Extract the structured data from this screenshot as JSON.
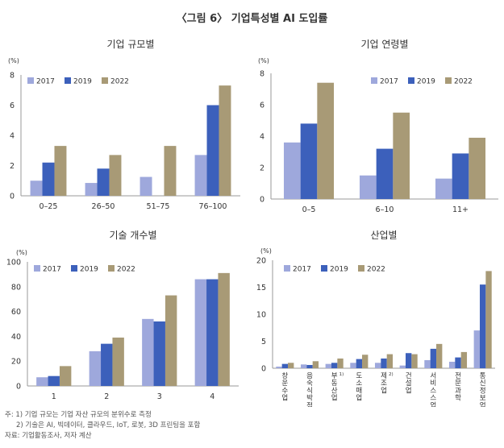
{
  "page_title": "〈그림 6〉 기업특성별 AI 도입률",
  "legend_labels": [
    "2017",
    "2019",
    "2022"
  ],
  "colors": {
    "s2017": "#9ea8dc",
    "s2019": "#3c60bb",
    "s2022": "#a89a76",
    "axis": "#9a9a9a",
    "text": "#333333"
  },
  "notes": {
    "line1": "주: 1) 기업 규모는 기업 자산 규모의 분위수로 측정",
    "line2": "2) 기술은 AI, 빅데이터, 클라우드, IoT, 로봇, 3D 프린팅을 포함",
    "line3": "자료: 기업활동조사, 저자 계산"
  },
  "chart_data": [
    {
      "type": "bar",
      "title": "기업 규모별",
      "unit_label": "(%)",
      "categories": [
        "0–25",
        "26–50",
        "51–75",
        "76–100"
      ],
      "ylim": [
        0,
        8
      ],
      "yticks": [
        0,
        2,
        4,
        6,
        8
      ],
      "legend_position": "top-left",
      "series": [
        {
          "name": "2017",
          "values": [
            1.0,
            0.85,
            1.25,
            2.7
          ]
        },
        {
          "name": "2019",
          "values": [
            2.2,
            1.8,
            0,
            6.0
          ]
        },
        {
          "name": "2022",
          "values": [
            3.3,
            2.7,
            3.3,
            7.3
          ]
        }
      ]
    },
    {
      "type": "bar",
      "title": "기업 연령별",
      "unit_label": "(%)",
      "categories": [
        "0–5",
        "6–10",
        "11+"
      ],
      "ylim": [
        0,
        8
      ],
      "yticks": [
        0,
        2,
        4,
        6,
        8
      ],
      "legend_position": "top-right",
      "series": [
        {
          "name": "2017",
          "values": [
            3.6,
            1.5,
            1.3
          ]
        },
        {
          "name": "2019",
          "values": [
            4.8,
            3.2,
            2.9
          ]
        },
        {
          "name": "2022",
          "values": [
            7.4,
            5.5,
            3.9
          ]
        }
      ]
    },
    {
      "type": "bar",
      "title": "기술 개수별",
      "unit_label": "(%)",
      "categories": [
        "1",
        "2",
        "3",
        "4"
      ],
      "ylim": [
        0,
        100
      ],
      "yticks": [
        0,
        20,
        40,
        60,
        80,
        100
      ],
      "legend_position": "top-left",
      "series": [
        {
          "name": "2017",
          "values": [
            7,
            28,
            54,
            86
          ]
        },
        {
          "name": "2019",
          "values": [
            8,
            34,
            52,
            86
          ]
        },
        {
          "name": "2022",
          "values": [
            16,
            39,
            73,
            91
          ]
        }
      ]
    },
    {
      "type": "bar",
      "title": "산업별",
      "unit_label": "(%)",
      "categories": [
        "창운수업",
        "음숙식박점업",
        "부동산업1)",
        "도소매업",
        "제조업2)",
        "건설업",
        "서비스스업",
        "전문과학",
        "통신정보업"
      ],
      "category_lines": [
        [
          "창",
          "운",
          "수",
          "업"
        ],
        [
          "음",
          "숙",
          "식",
          "박",
          "점",
          "업"
        ],
        [
          "부",
          "동",
          "산",
          "업"
        ],
        [
          "도",
          "소",
          "매",
          "업"
        ],
        [
          "제",
          "조",
          "업"
        ],
        [
          "건",
          "설",
          "업"
        ],
        [
          "서",
          "비",
          "스",
          "스",
          "업"
        ],
        [
          "전",
          "문",
          "과",
          "학"
        ],
        [
          "통",
          "신",
          "정",
          "보",
          "업"
        ]
      ],
      "category_marks": [
        "",
        "",
        "1)",
        "",
        "2)",
        "",
        "",
        "",
        ""
      ],
      "ylim": [
        0,
        20
      ],
      "yticks": [
        0,
        5,
        10,
        15,
        20
      ],
      "legend_position": "top-left",
      "series": [
        {
          "name": "2017",
          "values": [
            0.3,
            0.7,
            0.8,
            1.0,
            1.0,
            0.5,
            1.5,
            1.2,
            7.0
          ]
        },
        {
          "name": "2019",
          "values": [
            0.8,
            0.6,
            1.0,
            1.7,
            1.8,
            2.8,
            3.6,
            2.0,
            15.5
          ]
        },
        {
          "name": "2022",
          "values": [
            1.0,
            1.3,
            1.8,
            2.5,
            2.6,
            2.6,
            4.5,
            3.0,
            18.0
          ]
        }
      ]
    }
  ]
}
